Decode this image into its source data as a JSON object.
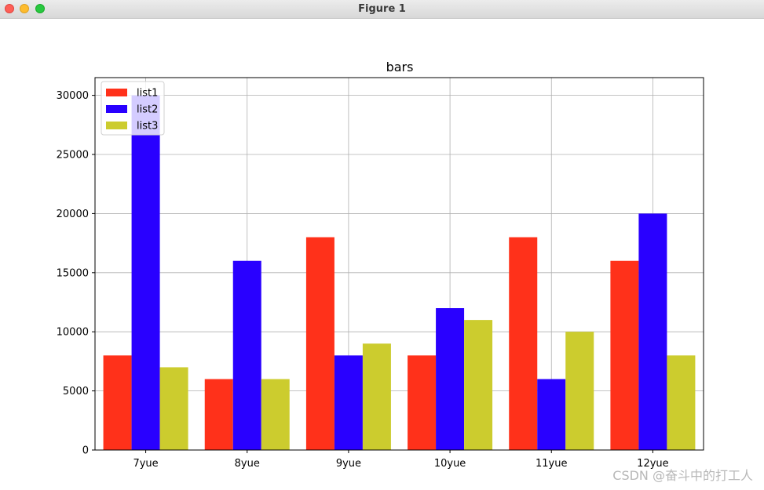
{
  "window": {
    "title": "Figure 1"
  },
  "watermark": "CSDN @奋斗中的打工人",
  "chart_data": {
    "type": "bar",
    "title": "bars",
    "xlabel": "",
    "ylabel": "",
    "categories": [
      "7yue",
      "8yue",
      "9yue",
      "10yue",
      "11yue",
      "12yue"
    ],
    "series": [
      {
        "name": "list1",
        "color": "#ff311a",
        "values": [
          8000,
          6000,
          18000,
          8000,
          18000,
          16000
        ]
      },
      {
        "name": "list2",
        "color": "#2900ff",
        "values": [
          30000,
          16000,
          8000,
          12000,
          6000,
          20000
        ]
      },
      {
        "name": "list3",
        "color": "#cccc2e",
        "values": [
          7000,
          6000,
          9000,
          11000,
          10000,
          8000
        ]
      }
    ],
    "ylim": [
      0,
      31500
    ],
    "yticks": [
      0,
      5000,
      10000,
      15000,
      20000,
      25000,
      30000
    ],
    "grid": true,
    "legend": "top-left"
  }
}
